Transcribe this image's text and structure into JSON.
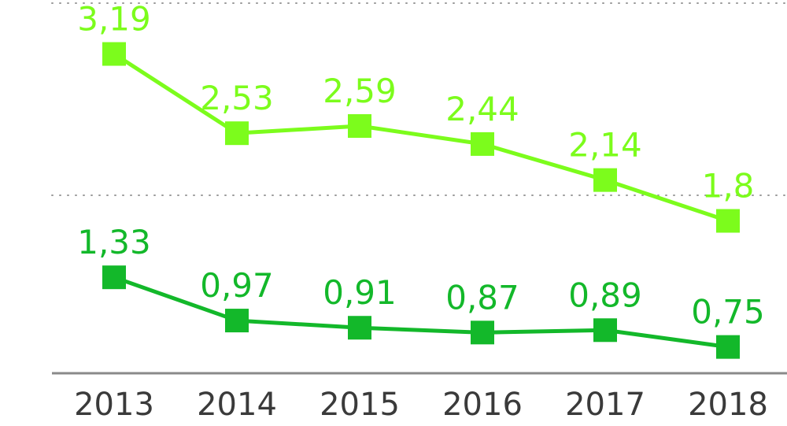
{
  "chart_data": {
    "type": "line",
    "categories": [
      "2013",
      "2014",
      "2015",
      "2016",
      "2017",
      "2018"
    ],
    "series": [
      {
        "color": "#7cfc1c",
        "values": [
          3.19,
          2.53,
          2.59,
          2.44,
          2.14,
          1.8
        ],
        "labels": [
          "3,19",
          "2,53",
          "2,59",
          "2,44",
          "2,14",
          "1,8"
        ]
      },
      {
        "color": "#13b82a",
        "values": [
          1.33,
          0.97,
          0.91,
          0.87,
          0.89,
          0.75
        ],
        "labels": [
          "1,33",
          "0,97",
          "0,91",
          "0,87",
          "0,89",
          "0,75"
        ]
      }
    ],
    "grid": "dotted horizontal",
    "legend": "none",
    "xlabel": "",
    "ylabel": ""
  }
}
